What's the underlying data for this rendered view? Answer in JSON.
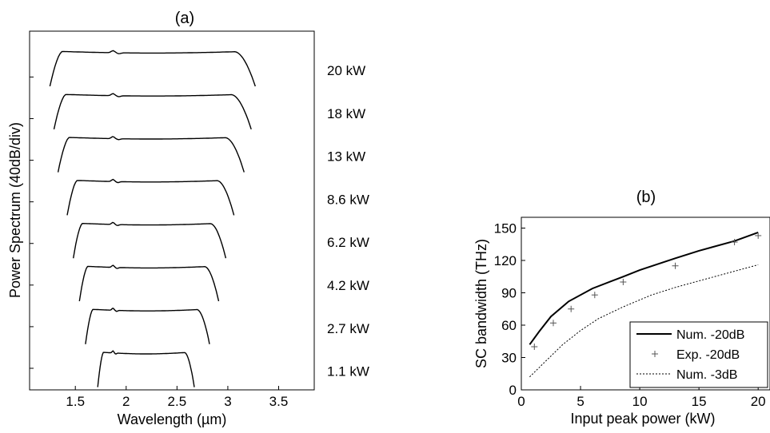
{
  "chart_data": [
    {
      "panel": "(a)",
      "type": "line",
      "title": "(a)",
      "xlabel": "Wavelength (µm)",
      "ylabel": "Power Spectrum (40dB/div)",
      "xlim": [
        1.05,
        3.85
      ],
      "xticks": [
        1.5,
        2,
        2.5,
        3,
        3.5
      ],
      "xtick_labels": [
        "1.5",
        "2",
        "2.5",
        "3",
        "3.5"
      ],
      "yticks_count": 8,
      "series": [
        {
          "name": "20 kW",
          "x_start": 1.25,
          "x_end": 3.27
        },
        {
          "name": "18 kW",
          "x_start": 1.29,
          "x_end": 3.23
        },
        {
          "name": "13 kW",
          "x_start": 1.33,
          "x_end": 3.16
        },
        {
          "name": "8.6 kW",
          "x_start": 1.42,
          "x_end": 3.06
        },
        {
          "name": "6.2 kW",
          "x_start": 1.48,
          "x_end": 2.98
        },
        {
          "name": "4.2 kW",
          "x_start": 1.54,
          "x_end": 2.91
        },
        {
          "name": "2.7 kW",
          "x_start": 1.6,
          "x_end": 2.82
        },
        {
          "name": "1.1 kW",
          "x_start": 1.72,
          "x_end": 2.67
        }
      ]
    },
    {
      "panel": "(b)",
      "type": "line",
      "title": "(b)",
      "xlabel": "Input peak power (kW)",
      "ylabel": "SC bandwidth (THz)",
      "xlim": [
        0,
        21
      ],
      "ylim": [
        0,
        160
      ],
      "xticks": [
        0,
        5,
        10,
        15,
        20
      ],
      "yticks": [
        0,
        30,
        60,
        90,
        120,
        150
      ],
      "legend_position": "bottom-right",
      "series": [
        {
          "name": "Num. -20dB",
          "style": "solid",
          "x": [
            0.7,
            1.5,
            2.5,
            4,
            6,
            8.6,
            10,
            13,
            15,
            18,
            20
          ],
          "y": [
            42,
            54,
            68,
            82,
            94,
            105,
            111,
            122,
            129,
            138,
            146
          ]
        },
        {
          "name": "Exp. -20dB",
          "style": "plus",
          "x": [
            1.1,
            2.7,
            4.2,
            6.2,
            8.6,
            13,
            18,
            20
          ],
          "y": [
            40,
            62,
            75,
            88,
            100,
            115,
            137,
            143
          ]
        },
        {
          "name": "Num. -3dB",
          "style": "dotted",
          "x": [
            0.7,
            2,
            3.5,
            5,
            6.5,
            8.6,
            11,
            13,
            15,
            18,
            20
          ],
          "y": [
            12,
            26,
            42,
            55,
            66,
            77,
            88,
            95,
            101,
            110,
            116
          ]
        }
      ]
    }
  ]
}
